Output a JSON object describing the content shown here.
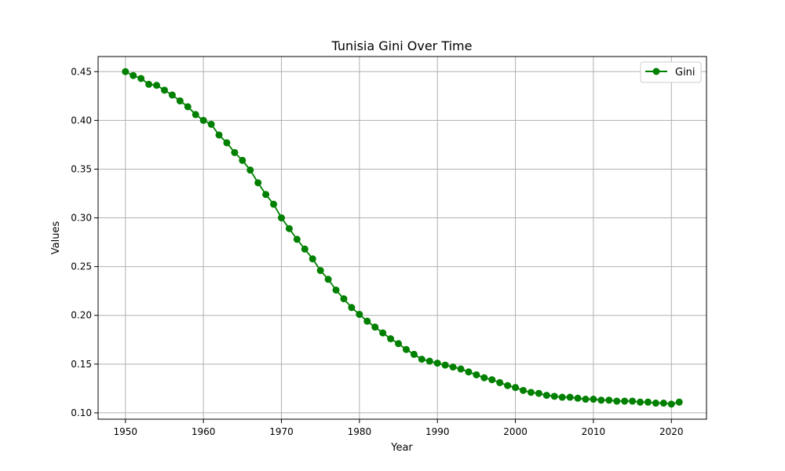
{
  "chart_data": {
    "type": "line",
    "title": "Tunisia Gini Over Time",
    "xlabel": "Year",
    "ylabel": "Values",
    "xlim": [
      1946.5,
      2024.5
    ],
    "ylim": [
      0.0935,
      0.4655
    ],
    "xticks": [
      1950,
      1960,
      1970,
      1980,
      1990,
      2000,
      2010,
      2020
    ],
    "yticks": [
      0.1,
      0.15,
      0.2,
      0.25,
      0.3,
      0.35,
      0.4,
      0.45
    ],
    "ytick_labels": [
      "0.10",
      "0.15",
      "0.20",
      "0.25",
      "0.30",
      "0.35",
      "0.40",
      "0.45"
    ],
    "grid": true,
    "legend": "top-right",
    "color": "#008000",
    "series": [
      {
        "name": "Gini",
        "x": [
          1950,
          1951,
          1952,
          1953,
          1954,
          1955,
          1956,
          1957,
          1958,
          1959,
          1960,
          1961,
          1962,
          1963,
          1964,
          1965,
          1966,
          1967,
          1968,
          1969,
          1970,
          1971,
          1972,
          1973,
          1974,
          1975,
          1976,
          1977,
          1978,
          1979,
          1980,
          1981,
          1982,
          1983,
          1984,
          1985,
          1986,
          1987,
          1988,
          1989,
          1990,
          1991,
          1992,
          1993,
          1994,
          1995,
          1996,
          1997,
          1998,
          1999,
          2000,
          2001,
          2002,
          2003,
          2004,
          2005,
          2006,
          2007,
          2008,
          2009,
          2010,
          2011,
          2012,
          2013,
          2014,
          2015,
          2016,
          2017,
          2018,
          2019,
          2020,
          2021
        ],
        "values": [
          0.45,
          0.446,
          0.443,
          0.437,
          0.436,
          0.431,
          0.426,
          0.42,
          0.414,
          0.406,
          0.4,
          0.396,
          0.385,
          0.377,
          0.367,
          0.359,
          0.349,
          0.336,
          0.324,
          0.314,
          0.3,
          0.289,
          0.278,
          0.268,
          0.258,
          0.246,
          0.237,
          0.226,
          0.217,
          0.208,
          0.201,
          0.194,
          0.188,
          0.182,
          0.176,
          0.171,
          0.165,
          0.16,
          0.155,
          0.153,
          0.151,
          0.149,
          0.147,
          0.145,
          0.142,
          0.139,
          0.136,
          0.134,
          0.131,
          0.128,
          0.126,
          0.123,
          0.121,
          0.12,
          0.118,
          0.117,
          0.116,
          0.116,
          0.115,
          0.114,
          0.114,
          0.113,
          0.113,
          0.112,
          0.112,
          0.112,
          0.111,
          0.111,
          0.11,
          0.11,
          0.109,
          0.111
        ]
      }
    ]
  }
}
